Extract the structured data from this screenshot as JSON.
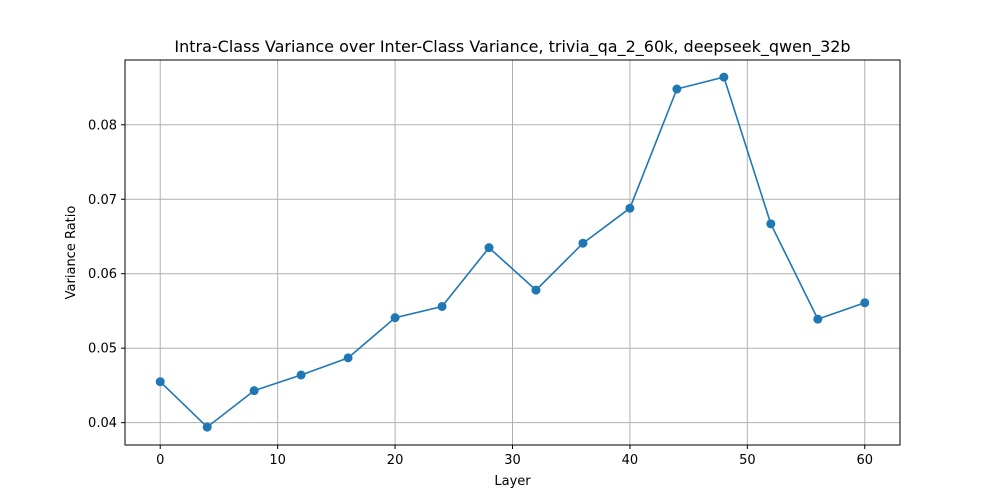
{
  "chart_data": {
    "type": "line",
    "title": "Intra-Class Variance over Inter-Class Variance, trivia_qa_2_60k, deepseek_qwen_32b",
    "xlabel": "Layer",
    "ylabel": "Variance Ratio",
    "xlim": [
      -3,
      63
    ],
    "ylim": [
      0.037,
      0.0887
    ],
    "xticks": [
      0,
      10,
      20,
      30,
      40,
      50,
      60
    ],
    "yticks": [
      0.04,
      0.05,
      0.06,
      0.07,
      0.08
    ],
    "xtick_labels": [
      "0",
      "10",
      "20",
      "30",
      "40",
      "50",
      "60"
    ],
    "ytick_labels": [
      "0.04",
      "0.05",
      "0.06",
      "0.07",
      "0.08"
    ],
    "grid": true,
    "color": "#1f77b4",
    "marker": "circle",
    "x": [
      0,
      4,
      8,
      12,
      16,
      20,
      24,
      28,
      32,
      36,
      40,
      44,
      48,
      52,
      56,
      60
    ],
    "y": [
      0.0455,
      0.0394,
      0.0443,
      0.0464,
      0.0487,
      0.0541,
      0.0556,
      0.0635,
      0.0578,
      0.0641,
      0.0688,
      0.0848,
      0.0864,
      0.0667,
      0.0539,
      0.0561
    ]
  }
}
